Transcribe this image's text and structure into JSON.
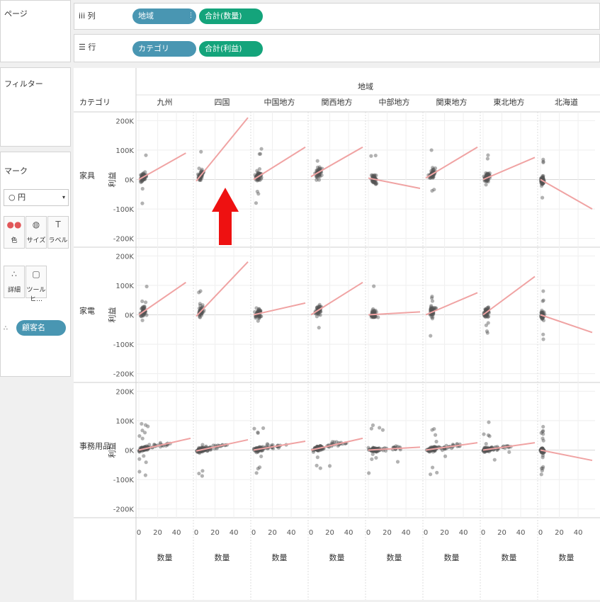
{
  "shelves": {
    "pages_label": "ページ",
    "columns_label": "列",
    "rows_label": "行",
    "columns_pills": [
      {
        "label": "地域",
        "color": "blue"
      },
      {
        "label": "合計(数量)",
        "color": "green"
      }
    ],
    "rows_pills": [
      {
        "label": "カテゴリ",
        "color": "blue"
      },
      {
        "label": "合計(利益)",
        "color": "green"
      }
    ],
    "filters_label": "フィルター"
  },
  "marks": {
    "title": "マーク",
    "type": "円",
    "buttons": [
      {
        "label": "色",
        "icon": "color-icon"
      },
      {
        "label": "サイズ",
        "icon": "size-icon"
      },
      {
        "label": "ラベル",
        "icon": "label-icon"
      },
      {
        "label": "詳細",
        "icon": "detail-icon"
      },
      {
        "label": "ツールヒ…",
        "icon": "tooltip-icon"
      }
    ],
    "detail_pill": "顧客名"
  },
  "colors": {
    "blue_pill": "#4996b2",
    "green_pill": "#14a47b",
    "point": "#555555",
    "trend": "#f0a3a3",
    "arrow": "#ee1111"
  },
  "chart_data": {
    "type": "scatter",
    "title": "地域",
    "row_header": "カテゴリ",
    "columns": [
      "九州",
      "四国",
      "中国地方",
      "関西地方",
      "中部地方",
      "関東地方",
      "東北地方",
      "北海道"
    ],
    "rows": [
      "家具",
      "家電",
      "事務用品"
    ],
    "xlabel": "数量",
    "ylabel": "利益",
    "xlim": [
      0,
      55
    ],
    "ylim": [
      -220000,
      220000
    ],
    "x_ticks": [
      0,
      20,
      40
    ],
    "x_tick_labels": [
      "0",
      "20",
      "40"
    ],
    "y_ticks": [
      200000,
      100000,
      0,
      -100000,
      -200000
    ],
    "y_tick_labels": [
      "200K",
      "100K",
      "0K",
      "-100K",
      "-200K"
    ],
    "trend_lines": {
      "家具": [
        [
          0,
          0,
          50,
          90000
        ],
        [
          0,
          -5000,
          55,
          210000
        ],
        [
          0,
          0,
          55,
          110000
        ],
        [
          0,
          10000,
          55,
          110000
        ],
        [
          0,
          5000,
          55,
          -30000
        ],
        [
          0,
          5000,
          55,
          110000
        ],
        [
          0,
          0,
          55,
          75000
        ],
        [
          0,
          0,
          55,
          -100000
        ]
      ],
      "家電": [
        [
          0,
          0,
          50,
          110000
        ],
        [
          0,
          -5000,
          55,
          180000
        ],
        [
          0,
          0,
          55,
          40000
        ],
        [
          0,
          0,
          55,
          110000
        ],
        [
          0,
          0,
          55,
          10000
        ],
        [
          0,
          0,
          55,
          75000
        ],
        [
          0,
          0,
          55,
          130000
        ],
        [
          0,
          0,
          55,
          -60000
        ]
      ],
      "事務用品": [
        [
          0,
          0,
          55,
          40000
        ],
        [
          0,
          -3000,
          55,
          35000
        ],
        [
          0,
          0,
          55,
          30000
        ],
        [
          0,
          0,
          55,
          40000
        ],
        [
          0,
          0,
          55,
          10000
        ],
        [
          0,
          0,
          55,
          25000
        ],
        [
          0,
          0,
          55,
          25000
        ],
        [
          0,
          0,
          55,
          -35000
        ]
      ]
    },
    "points_per_cell": {
      "家具": 55,
      "家電": 50,
      "事務用品": 120
    },
    "point_clusters_note_x": [
      5,
      5,
      5,
      8,
      6,
      7,
      4,
      3
    ]
  },
  "annotation": {
    "arrow": "up-arrow",
    "color": "#ee1111"
  }
}
